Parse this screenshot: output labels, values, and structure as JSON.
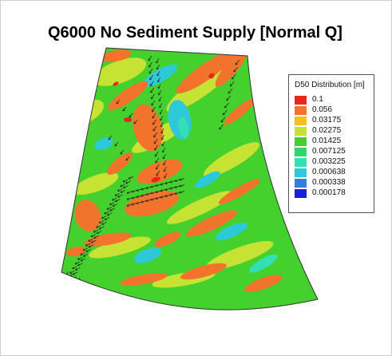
{
  "title": "Q6000 No Sediment Supply [Normal Q]",
  "legend": {
    "title": "D50 Distribution [m]",
    "items": [
      {
        "label": "0.1",
        "color": "#e8271a"
      },
      {
        "label": "0.056",
        "color": "#f2732c"
      },
      {
        "label": "0.03175",
        "color": "#f7c11c"
      },
      {
        "label": "0.02275",
        "color": "#c6e233"
      },
      {
        "label": "0.01425",
        "color": "#44d12e"
      },
      {
        "label": "0.007125",
        "color": "#2fd66e"
      },
      {
        "label": "0.003225",
        "color": "#33e0b5"
      },
      {
        "label": "0.000638",
        "color": "#2ec9d8"
      },
      {
        "label": "0.000338",
        "color": "#2f7fe0"
      },
      {
        "label": "0.000178",
        "color": "#1b1fd6"
      }
    ]
  },
  "map": {
    "background_color": "#44d12e",
    "arrow_color": "#222222"
  }
}
